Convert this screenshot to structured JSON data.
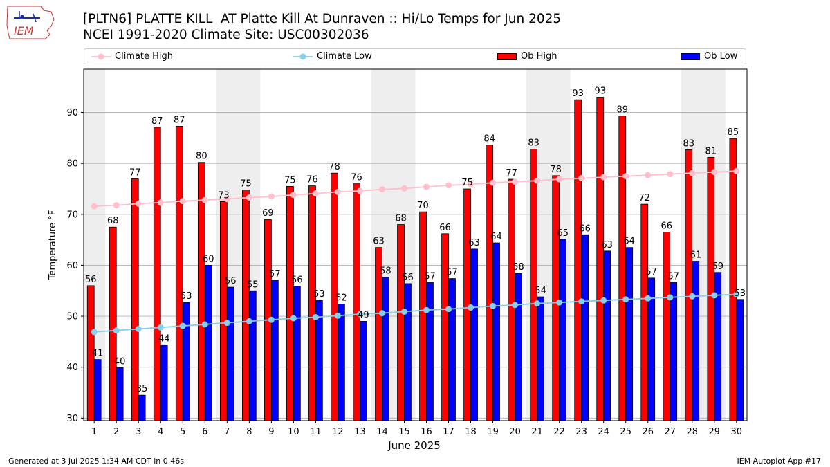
{
  "header": {
    "title_line1": "[PLTN6] PLATTE KILL  AT Platte Kill At Dunraven :: Hi/Lo Temps for Jun 2025",
    "title_line2": "NCEI 1991-2020 Climate Site: USC00302036",
    "logo_text": "IEM"
  },
  "footer": {
    "generated": "Generated at 3 Jul 2025 1:34 AM CDT in 0.46s",
    "app": "IEM Autoplot App #17"
  },
  "colors": {
    "ob_high": "#ff0000",
    "ob_low": "#0000ff",
    "climate_high": "#ffc0cb",
    "climate_low": "#87ceeb",
    "weekend_shade": "#eeeeee",
    "grid": "#b0b0b0"
  },
  "chart_data": {
    "type": "bar",
    "title": "[PLTN6] PLATTE KILL  AT Platte Kill At Dunraven :: Hi/Lo Temps for Jun 2025",
    "xlabel": "June 2025",
    "ylabel": "Temperature °F",
    "ylim": [
      29.5,
      98.5
    ],
    "yticks": [
      30,
      40,
      50,
      60,
      70,
      80,
      90
    ],
    "grid": true,
    "legend_position": "top",
    "categories": [
      "1",
      "2",
      "3",
      "4",
      "5",
      "6",
      "7",
      "8",
      "9",
      "10",
      "11",
      "12",
      "13",
      "14",
      "15",
      "16",
      "17",
      "18",
      "19",
      "20",
      "21",
      "22",
      "23",
      "24",
      "25",
      "26",
      "27",
      "28",
      "29",
      "30"
    ],
    "weekend_days": [
      1,
      7,
      8,
      14,
      15,
      21,
      22,
      28,
      29
    ],
    "series": [
      {
        "name": "Ob High",
        "kind": "bar",
        "values": [
          56,
          67.5,
          77,
          87.1,
          87.3,
          80.2,
          72.5,
          74.8,
          69,
          75.5,
          75.6,
          78.1,
          76,
          63.5,
          68,
          70.5,
          66.2,
          75,
          83.6,
          76.9,
          82.8,
          77.6,
          92.5,
          93,
          89.3,
          72,
          66.5,
          82.7,
          81.2,
          84.9
        ],
        "labels": [
          "56",
          "68",
          "77",
          "87",
          "87",
          "80",
          "73",
          "75",
          "69",
          "75",
          "76",
          "78",
          "76",
          "63",
          "68",
          "70",
          "66",
          "75",
          "84",
          "77",
          "83",
          "78",
          "93",
          "93",
          "89",
          "72",
          "66",
          "83",
          "81",
          "85"
        ]
      },
      {
        "name": "Ob Low",
        "kind": "bar",
        "values": [
          41.5,
          39.9,
          34.5,
          44.4,
          52.7,
          60,
          55.7,
          55,
          57.1,
          55.9,
          53.1,
          52.4,
          49,
          57.7,
          56.4,
          56.6,
          57.4,
          63.2,
          64.4,
          58.4,
          53.8,
          65.1,
          66,
          62.8,
          63.5,
          57.5,
          56.6,
          60.8,
          58.6,
          53.3
        ],
        "labels": [
          "41",
          "40",
          "35",
          "44",
          "53",
          "60",
          "56",
          "55",
          "57",
          "56",
          "53",
          "52",
          "49",
          "58",
          "56",
          "57",
          "57",
          "63",
          "64",
          "58",
          "54",
          "65",
          "66",
          "63",
          "64",
          "57",
          "57",
          "61",
          "59",
          "53"
        ]
      },
      {
        "name": "Climate High",
        "kind": "line",
        "values": [
          71.6,
          71.8,
          72.1,
          72.3,
          72.6,
          72.8,
          73.0,
          73.3,
          73.5,
          73.8,
          74.1,
          74.4,
          74.6,
          74.9,
          75.1,
          75.4,
          75.7,
          75.9,
          76.2,
          76.4,
          76.6,
          76.9,
          77.1,
          77.3,
          77.5,
          77.7,
          77.9,
          78.1,
          78.3,
          78.5
        ]
      },
      {
        "name": "Climate Low",
        "kind": "line",
        "values": [
          46.9,
          47.2,
          47.5,
          47.8,
          48.1,
          48.4,
          48.7,
          49.0,
          49.3,
          49.6,
          49.8,
          50.1,
          50.4,
          50.6,
          50.9,
          51.2,
          51.4,
          51.7,
          52.0,
          52.2,
          52.5,
          52.7,
          52.9,
          53.1,
          53.3,
          53.5,
          53.7,
          53.9,
          54.1,
          54.3
        ]
      }
    ]
  }
}
